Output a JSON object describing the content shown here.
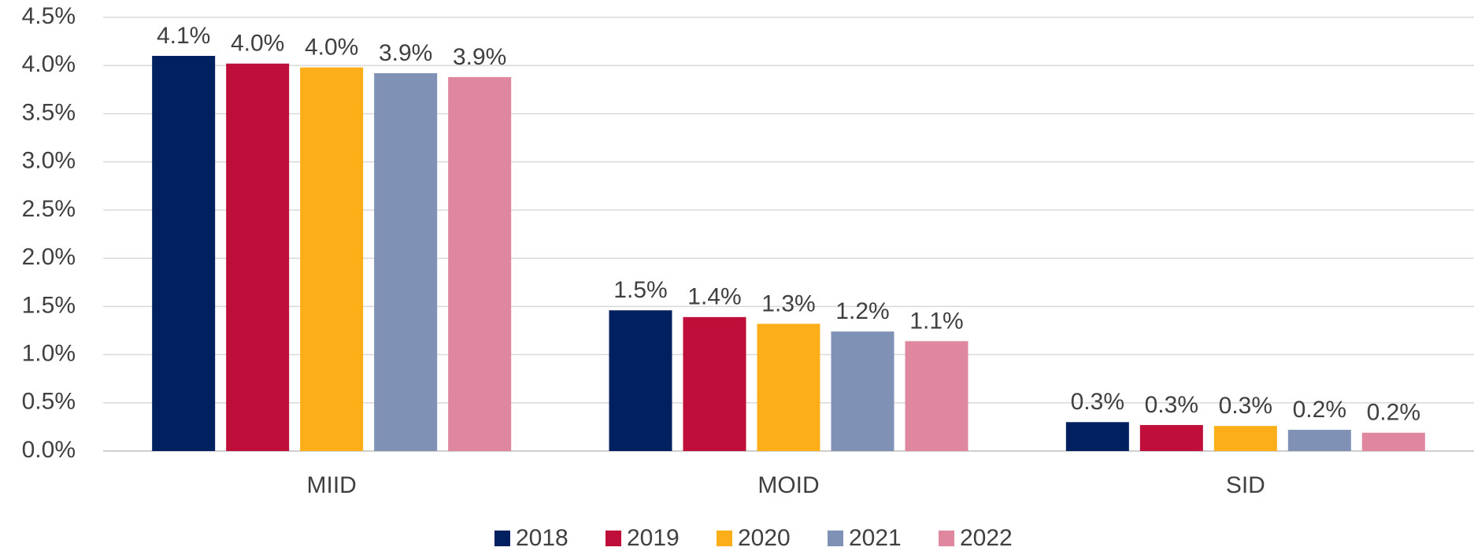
{
  "chart_data": {
    "type": "bar",
    "categories": [
      "MIID",
      "MOID",
      "SID"
    ],
    "series": [
      {
        "name": "2018",
        "color": "#002060",
        "values": [
          4.1,
          1.46,
          0.3
        ],
        "value_labels": [
          "4.1%",
          "1.5%",
          "0.3%"
        ]
      },
      {
        "name": "2019",
        "color": "#c00e3a",
        "values": [
          4.02,
          1.39,
          0.27
        ],
        "value_labels": [
          "4.0%",
          "1.4%",
          "0.3%"
        ]
      },
      {
        "name": "2020",
        "color": "#fbae17",
        "values": [
          3.98,
          1.32,
          0.26
        ],
        "value_labels": [
          "4.0%",
          "1.3%",
          "0.3%"
        ]
      },
      {
        "name": "2021",
        "color": "#7f91b4",
        "values": [
          3.92,
          1.24,
          0.22
        ],
        "value_labels": [
          "3.9%",
          "1.2%",
          "0.2%"
        ]
      },
      {
        "name": "2022",
        "color": "#df879f",
        "values": [
          3.88,
          1.14,
          0.19
        ],
        "value_labels": [
          "3.9%",
          "1.1%",
          "0.2%"
        ]
      }
    ],
    "ylim": [
      0,
      4.5
    ],
    "yticks": [
      {
        "value": 0,
        "label": "0.0%"
      },
      {
        "value": 0.5,
        "label": "0.5%"
      },
      {
        "value": 1,
        "label": "1.0%"
      },
      {
        "value": 1.5,
        "label": "1.5%"
      },
      {
        "value": 2,
        "label": "2.0%"
      },
      {
        "value": 2.5,
        "label": "2.5%"
      },
      {
        "value": 3,
        "label": "3.0%"
      },
      {
        "value": 3.5,
        "label": "3.5%"
      },
      {
        "value": 4,
        "label": "4.0%"
      },
      {
        "value": 4.5,
        "label": "4.5%"
      }
    ],
    "grid": true,
    "legend": "bottom"
  }
}
